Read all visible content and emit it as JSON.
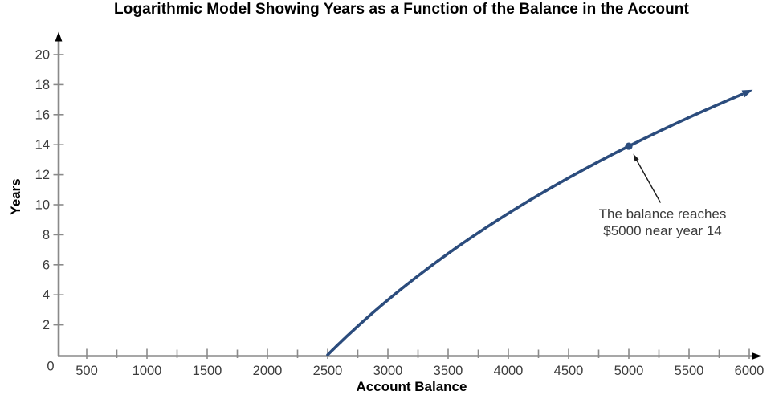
{
  "chart_data": {
    "type": "line",
    "title": "Logarithmic Model Showing Years as a Function of the Balance in the Account",
    "xlabel": "Account Balance",
    "ylabel": "Years",
    "xlim": [
      0,
      6000
    ],
    "ylim": [
      0,
      20
    ],
    "grid": false,
    "legend": "none",
    "x_axis": {
      "origin_label": "0",
      "major_ticks": [
        500,
        1000,
        1500,
        2000,
        2500,
        3000,
        3500,
        4000,
        4500,
        5000,
        5500,
        6000
      ],
      "minor_ticks": [
        750,
        1250,
        1750,
        2250,
        2750,
        3250,
        3750,
        4250,
        4750,
        5250,
        5750
      ],
      "has_arrow": true
    },
    "y_axis": {
      "ticks": [
        2,
        4,
        6,
        8,
        10,
        12,
        14,
        16,
        18,
        20
      ],
      "has_arrow": true
    },
    "curve": {
      "name": "logarithmic-model",
      "equation": "years = 13.9 · log2(balance / 2500)",
      "k": 13.9,
      "x0": 2500,
      "x_end": 6000,
      "has_arrow_end": true,
      "points": [
        [
          2500,
          0
        ],
        [
          2750,
          1.9
        ],
        [
          3000,
          3.7
        ],
        [
          3250,
          5.3
        ],
        [
          3500,
          6.7
        ],
        [
          3750,
          8.1
        ],
        [
          4000,
          9.4
        ],
        [
          4250,
          10.6
        ],
        [
          4500,
          11.8
        ],
        [
          4750,
          12.9
        ],
        [
          5000,
          13.9
        ],
        [
          5250,
          14.9
        ],
        [
          5500,
          15.8
        ],
        [
          5750,
          16.7
        ],
        [
          6000,
          17.6
        ]
      ]
    },
    "marked_point": {
      "x": 5000,
      "y": 13.9
    },
    "annotation": {
      "line1": "The balance reaches",
      "line2": "$5000 near year 14",
      "target": "marked_point"
    },
    "colors": {
      "curve": "#2b4c7d",
      "axis": "#8a8a8a",
      "axis_arrow": "#000000",
      "tick_label": "#3d3d3d",
      "title_text": "#000000",
      "annotation_text": "#3a3a3a",
      "annotation_arrow": "#1c1c1c",
      "background": "#ffffff"
    }
  }
}
